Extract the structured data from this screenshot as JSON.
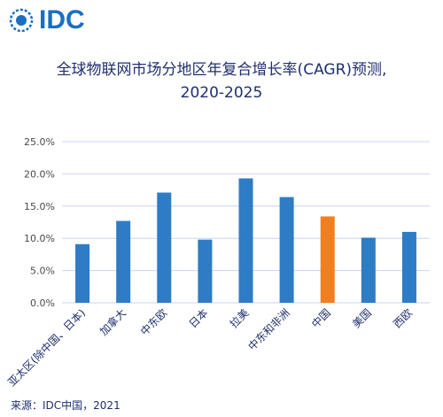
{
  "logo": {
    "text": "IDC",
    "color": "#1a6fc1"
  },
  "source": "来源：IDC中国，2021",
  "chart_data": {
    "type": "bar",
    "title": "全球物联网市场分地区年复合增长率(CAGR)预测,",
    "subtitle": "2020-2025",
    "categories": [
      "亚太区(除中国、日本)",
      "加拿大",
      "中东欧",
      "日本",
      "拉美",
      "中东和非洲",
      "中国",
      "美国",
      "西欧"
    ],
    "values": [
      9.1,
      12.7,
      17.1,
      9.8,
      19.3,
      16.4,
      13.4,
      10.1,
      11.0
    ],
    "highlight": "中国",
    "ylim": [
      0,
      25
    ],
    "yticks": [
      "0.0%",
      "5.0%",
      "10.0%",
      "15.0%",
      "20.0%",
      "25.0%"
    ],
    "grid": true,
    "bar_color": "#2e7cc4",
    "highlight_color": "#f07f20",
    "grid_color": "#c9d4f4"
  }
}
